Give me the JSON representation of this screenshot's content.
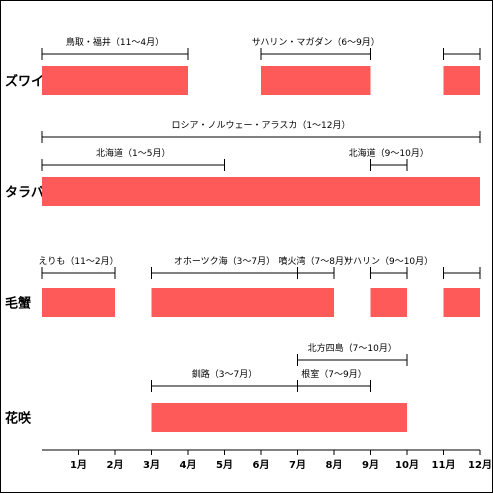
{
  "chart_data": {
    "type": "bar",
    "title": "",
    "xlabel": "",
    "ylabel": "",
    "x_ticks": [
      "1月",
      "2月",
      "3月",
      "4月",
      "5月",
      "6月",
      "7月",
      "8月",
      "9月",
      "10月",
      "11月",
      "12月"
    ],
    "bar_color": "#fe5a5a",
    "rows": [
      {
        "category": "ズワイ",
        "bars": [
          {
            "start": 0,
            "end": 4
          },
          {
            "start": 6,
            "end": 9
          },
          {
            "start": 11,
            "end": 12
          }
        ],
        "regions": [
          {
            "label": "鳥取・福井（11～4月）",
            "start": 0,
            "end": 4,
            "level": 0,
            "label_align": "center"
          },
          {
            "label": "サハリン・マガダン（6～9月）",
            "start": 6,
            "end": 9,
            "level": 0,
            "label_align": "center"
          },
          {
            "label": "",
            "start": 11,
            "end": 12,
            "level": 0,
            "label_align": "center"
          }
        ]
      },
      {
        "category": "タラバ",
        "bars": [
          {
            "start": 0,
            "end": 12
          }
        ],
        "regions": [
          {
            "label": "ロシア・ノルウェー・アラスカ（1～12月）",
            "start": 0,
            "end": 12,
            "level": 1,
            "label_align": "center"
          },
          {
            "label": "北海道（1～5月）",
            "start": 0,
            "end": 5,
            "level": 0,
            "label_align": "center"
          },
          {
            "label": "北海道（9～10月）",
            "start": 9,
            "end": 10,
            "level": 0,
            "label_align": "center"
          }
        ]
      },
      {
        "category": "毛蟹",
        "bars": [
          {
            "start": 0,
            "end": 2
          },
          {
            "start": 3,
            "end": 8
          },
          {
            "start": 9,
            "end": 10
          },
          {
            "start": 11,
            "end": 12
          }
        ],
        "regions": [
          {
            "label": "えりも（11～2月）",
            "start": 0,
            "end": 2,
            "level": 0,
            "label_align": "center"
          },
          {
            "label": "オホーツク海（3～7月）",
            "start": 3,
            "end": 7,
            "level": 0,
            "label_align": "center"
          },
          {
            "label": "噴火湾（7～8月）",
            "start": 7,
            "end": 8,
            "level": 0,
            "label_align": "center"
          },
          {
            "label": "サハリン（9～10月）",
            "start": 9,
            "end": 10,
            "level": 0,
            "label_align": "center"
          },
          {
            "label": "",
            "start": 11,
            "end": 12,
            "level": 0,
            "label_align": "center"
          }
        ]
      },
      {
        "category": "花咲",
        "bars": [
          {
            "start": 3,
            "end": 10
          }
        ],
        "regions": [
          {
            "label": "北方四島（7～10月）",
            "start": 7,
            "end": 10,
            "level": 1,
            "label_align": "center"
          },
          {
            "label": "釧路（3～7月）",
            "start": 3,
            "end": 7,
            "level": 0,
            "label_align": "center"
          },
          {
            "label": "根室（7～9月）",
            "start": 7,
            "end": 9,
            "level": 0,
            "label_align": "center"
          }
        ]
      }
    ]
  }
}
